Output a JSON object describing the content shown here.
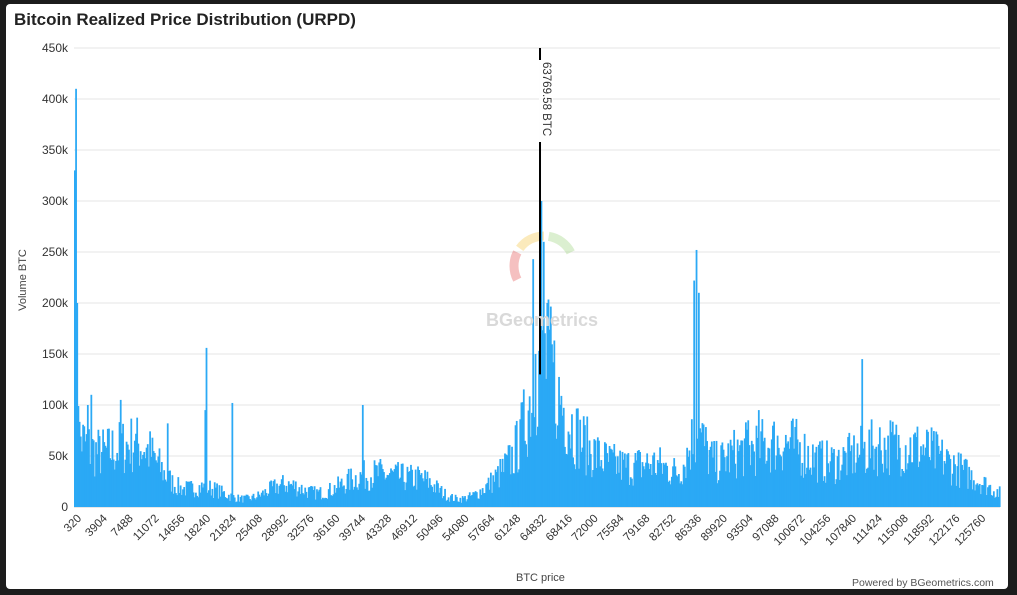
{
  "title": "Bitcoin Realized Price Distribution (URPD)",
  "credit": "Powered by BGeometrics.com",
  "watermark": "BGeometrics",
  "chart_data": {
    "type": "bar",
    "title": "Bitcoin Realized Price Distribution (URPD)",
    "xlabel": "BTC price",
    "ylabel": "Volume BTC",
    "ylim": [
      0,
      450000
    ],
    "yticks": [
      "0",
      "50k",
      "100k",
      "150k",
      "200k",
      "250k",
      "300k",
      "350k",
      "400k",
      "450k"
    ],
    "grid": true,
    "bar_color": "#2ba9f5",
    "x_tick_labels": [
      "320",
      "3904",
      "7488",
      "11072",
      "14656",
      "18240",
      "21824",
      "25408",
      "28992",
      "32576",
      "36160",
      "39744",
      "43328",
      "46912",
      "50496",
      "54080",
      "57664",
      "61248",
      "64832",
      "68416",
      "72000",
      "75584",
      "79168",
      "82752",
      "86336",
      "89920",
      "93504",
      "97088",
      "100672",
      "104256",
      "107840",
      "111424",
      "115008",
      "118592",
      "122176",
      "125760"
    ],
    "x_range": [
      320,
      126400
    ],
    "approx_peaks": [
      {
        "x": 320,
        "y": 330000
      },
      {
        "x": 450,
        "y": 410000
      },
      {
        "x": 600,
        "y": 200000
      },
      {
        "x": 760,
        "y": 99000
      },
      {
        "x": 2000,
        "y": 100000
      },
      {
        "x": 2500,
        "y": 110000
      },
      {
        "x": 4400,
        "y": 60000
      },
      {
        "x": 5500,
        "y": 75000
      },
      {
        "x": 6500,
        "y": 105000
      },
      {
        "x": 8500,
        "y": 65000
      },
      {
        "x": 13000,
        "y": 82000
      },
      {
        "x": 18000,
        "y": 95000
      },
      {
        "x": 18200,
        "y": 156000
      },
      {
        "x": 21800,
        "y": 102000
      },
      {
        "x": 39500,
        "y": 100000
      },
      {
        "x": 61000,
        "y": 86000
      },
      {
        "x": 62700,
        "y": 243000
      },
      {
        "x": 63000,
        "y": 150000
      },
      {
        "x": 63770,
        "y": 300000
      },
      {
        "x": 64200,
        "y": 260000
      },
      {
        "x": 64600,
        "y": 200000
      },
      {
        "x": 66000,
        "y": 80000
      },
      {
        "x": 84700,
        "y": 222000
      },
      {
        "x": 85000,
        "y": 252000
      },
      {
        "x": 85300,
        "y": 210000
      },
      {
        "x": 92000,
        "y": 85000
      },
      {
        "x": 93500,
        "y": 95000
      },
      {
        "x": 107500,
        "y": 145000
      },
      {
        "x": 111000,
        "y": 70000
      },
      {
        "x": 125800,
        "y": 10000
      }
    ],
    "annotation": {
      "x": 63769.58,
      "label": "63769.58 BTC"
    }
  }
}
